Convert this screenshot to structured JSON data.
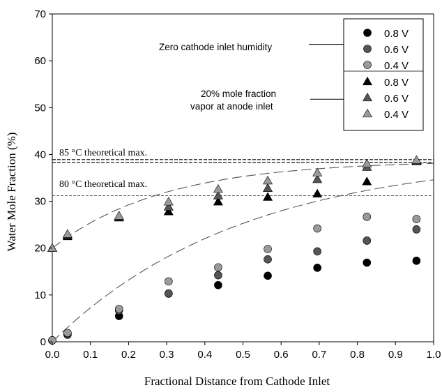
{
  "chart_data": {
    "type": "scatter",
    "xlabel": "Fractional Distance from Cathode Inlet",
    "ylabel": "Water Mole Fraction (%)",
    "xlim": [
      0.0,
      1.0
    ],
    "ylim": [
      0,
      70
    ],
    "x_ticks": [
      "0.0",
      "0.1",
      "0.2",
      "0.3",
      "0.4",
      "0.5",
      "0.6",
      "0.7",
      "0.8",
      "0.9",
      "1.0"
    ],
    "y_ticks": [
      "0",
      "10",
      "20",
      "30",
      "40",
      "50",
      "60",
      "70"
    ],
    "grid": false,
    "legend_position": "top-right",
    "x": [
      0.0,
      0.04,
      0.175,
      0.305,
      0.435,
      0.565,
      0.695,
      0.825,
      0.955
    ],
    "series": [
      {
        "name": "0.8 V",
        "marker": "circle",
        "color": "#000000",
        "values": [
          0.3,
          1.5,
          5.5,
          10.3,
          12.1,
          14.1,
          15.8,
          16.9,
          17.3
        ]
      },
      {
        "name": "0.6 V",
        "marker": "circle",
        "color": "#555555",
        "values": [
          0.3,
          1.6,
          6.7,
          10.3,
          14.2,
          17.6,
          19.3,
          21.6,
          24.0
        ]
      },
      {
        "name": "0.4 V",
        "marker": "circle",
        "color": "#9a9a9a",
        "values": [
          0.3,
          1.9,
          7.0,
          12.9,
          15.9,
          19.8,
          24.2,
          26.7,
          26.2
        ]
      },
      {
        "name": "0.8 V",
        "marker": "triangle",
        "color": "#000000",
        "values": [
          20.0,
          22.5,
          26.5,
          27.8,
          29.9,
          30.9,
          31.6,
          34.2,
          38.5
        ]
      },
      {
        "name": "0.6 V",
        "marker": "triangle",
        "color": "#555555",
        "values": [
          20.0,
          22.8,
          26.7,
          28.8,
          31.2,
          32.8,
          34.7,
          37.3,
          38.6
        ]
      },
      {
        "name": "0.4 V",
        "marker": "triangle",
        "color": "#9a9a9a",
        "values": [
          20.0,
          23.0,
          26.9,
          29.9,
          32.6,
          34.4,
          36.1,
          38.0,
          38.8
        ]
      }
    ],
    "reference_lines": [
      {
        "label": "85 °C theoretical max.",
        "y": 38.6,
        "style": "double-dashed"
      },
      {
        "label": "80 °C theoretical max.",
        "y": 31.2,
        "style": "dashed"
      }
    ],
    "fit_curves": [
      {
        "y0": 0,
        "y_inf": 40,
        "rate": 2.0
      },
      {
        "y0": 20,
        "y_inf": 38.7,
        "rate": 3.4
      }
    ],
    "annotations": [
      {
        "text": "Zero cathode inlet humidity",
        "y": 63.5,
        "arrow_to_x": 0.83
      },
      {
        "text_lines": [
          "20% mole fraction",
          "vapor at anode inlet"
        ],
        "y": 51.8,
        "arrow_to_x": 0.83
      }
    ],
    "text": {
      "label_85": "85 °C theoretical max.",
      "label_80": "80 °C theoretical max.",
      "anno_zero": "Zero cathode inlet humidity",
      "anno_20_line1": "20% mole fraction",
      "anno_20_line2": "vapor at anode inlet"
    }
  }
}
